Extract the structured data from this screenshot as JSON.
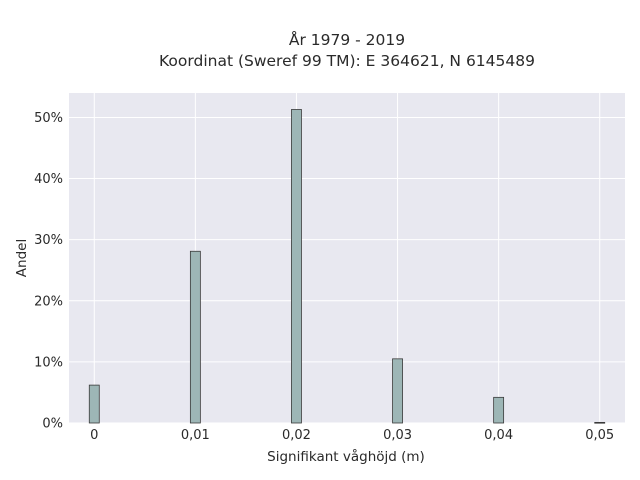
{
  "chart_data": {
    "type": "bar",
    "title": "År 1979 - 2019",
    "subtitle": "Koordinat (Sweref 99 TM): E 364621, N 6145489",
    "xlabel": "Signifikant våghöjd (m)",
    "ylabel": "Andel",
    "x": [
      0,
      0.01,
      0.02,
      0.03,
      0.04,
      0.05
    ],
    "values": [
      6.2,
      28.1,
      51.3,
      10.5,
      4.2,
      0.1
    ],
    "value_unit": "%",
    "x_tick_labels": [
      "0",
      "0,01",
      "0,02",
      "0,03",
      "0,04",
      "0,05"
    ],
    "y_tick_values": [
      0,
      10,
      20,
      30,
      40,
      50
    ],
    "y_tick_labels": [
      "0%",
      "10%",
      "20%",
      "30%",
      "40%",
      "50%"
    ],
    "xlim": [
      -0.0025,
      0.0525
    ],
    "ylim": [
      0,
      54
    ],
    "grid": true,
    "colors": {
      "plot_background": "#e8e8f0",
      "grid": "#ffffff",
      "bar_fill": "#9db6b6",
      "bar_stroke": "#3a3a3a"
    }
  }
}
